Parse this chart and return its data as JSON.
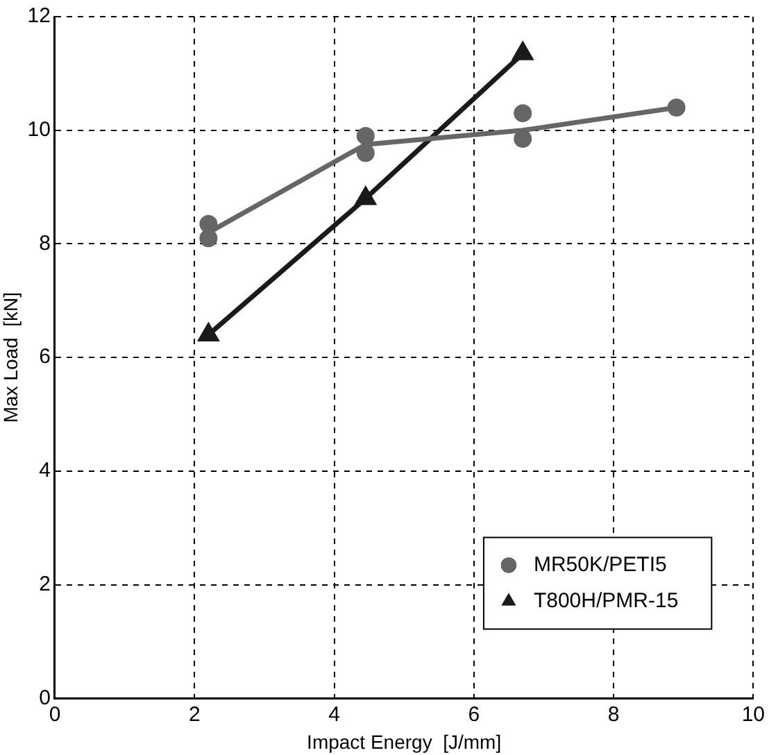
{
  "chart_data": {
    "type": "scatter",
    "xlabel": "Impact Energy  [J/mm]",
    "ylabel": "Max Load  [kN]",
    "xlim": [
      0,
      10
    ],
    "xticks": [
      0,
      2,
      4,
      6,
      8,
      10
    ],
    "ylim": [
      0,
      12
    ],
    "yticks": [
      0,
      2,
      4,
      6,
      8,
      10,
      12
    ],
    "grid": true,
    "legend": "bottom right",
    "series": [
      {
        "type": "line",
        "color": "#666666",
        "marker": "none",
        "x": [
          2.2,
          4.45,
          6.7,
          8.9
        ],
        "values": [
          8.2,
          9.75,
          10.0,
          10.4
        ]
      },
      {
        "name": "MR50K/PETI5",
        "color": "#666666",
        "marker": "circle",
        "x": [
          2.2,
          2.2,
          4.45,
          4.45,
          6.7,
          6.7,
          8.9
        ],
        "values": [
          8.1,
          8.35,
          9.6,
          9.9,
          9.85,
          10.3,
          10.4
        ]
      },
      {
        "type": "line",
        "name": "T800H/PMR-15",
        "color": "#1a1a1a",
        "marker": "triangle",
        "x": [
          2.2,
          4.45,
          6.7
        ],
        "values": [
          6.4,
          8.8,
          11.35
        ]
      }
    ]
  }
}
